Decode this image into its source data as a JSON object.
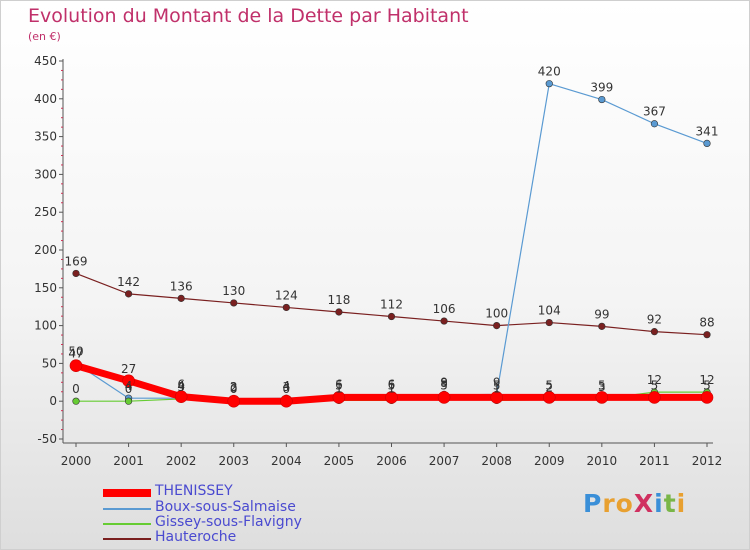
{
  "header": {
    "title": "Evolution du Montant de la Dette par Habitant",
    "unit": "(en €)"
  },
  "logo": {
    "text": "ProXiti",
    "colors": [
      "#3a8fd8",
      "#e8a030",
      "#e8a030",
      "#d03060",
      "#3a8fd8",
      "#7ab648",
      "#e8a030"
    ]
  },
  "chart_data": {
    "type": "line",
    "title": "Evolution du Montant de la Dette par Habitant",
    "subtitle": "(en €)",
    "xlabel": "",
    "ylabel": "",
    "x": [
      "2000",
      "2001",
      "2002",
      "2003",
      "2004",
      "2005",
      "2006",
      "2007",
      "2008",
      "2009",
      "2010",
      "2011",
      "2012"
    ],
    "ylim": [
      -50,
      450
    ],
    "yticks": [
      -50,
      0,
      50,
      100,
      150,
      200,
      250,
      300,
      350,
      400,
      450
    ],
    "grid": false,
    "legend_position": "bottom-left",
    "series": [
      {
        "name": "THENISSEY",
        "color": "#ff0000",
        "values": [
          47,
          27,
          6,
          0,
          0,
          5,
          5,
          5,
          5,
          5,
          5,
          5,
          5
        ],
        "labels": [
          "47",
          "27",
          "6",
          "0",
          "0",
          "5",
          "5",
          "5",
          "5",
          "5",
          "5",
          "5",
          "5"
        ]
      },
      {
        "name": "Boux-sous-Salmaise",
        "color": "#5a9ad2",
        "values": [
          50,
          4,
          4,
          3,
          4,
          6,
          6,
          8,
          9,
          420,
          399,
          367,
          341
        ],
        "labels": [
          "50",
          "4",
          "4",
          "3",
          "4",
          "6",
          "6",
          "8",
          "9",
          "420",
          "399",
          "367",
          "341"
        ]
      },
      {
        "name": "Gissey-sous-Flavigny",
        "color": "#66cc33",
        "values": [
          0,
          0,
          3,
          2,
          3,
          1,
          1,
          9,
          1,
          2,
          3,
          12,
          12
        ],
        "labels": [
          "0",
          "0",
          "3",
          "2",
          "3",
          "1",
          "1",
          "9",
          "1",
          "2",
          "3",
          "12",
          "12"
        ]
      },
      {
        "name": "Hauteroche",
        "color": "#7a2020",
        "values": [
          169,
          142,
          136,
          130,
          124,
          118,
          112,
          106,
          100,
          104,
          99,
          92,
          88
        ],
        "labels": [
          "169",
          "142",
          "136",
          "130",
          "124",
          "118",
          "112",
          "106",
          "100",
          "104",
          "99",
          "92",
          "88"
        ]
      }
    ]
  }
}
